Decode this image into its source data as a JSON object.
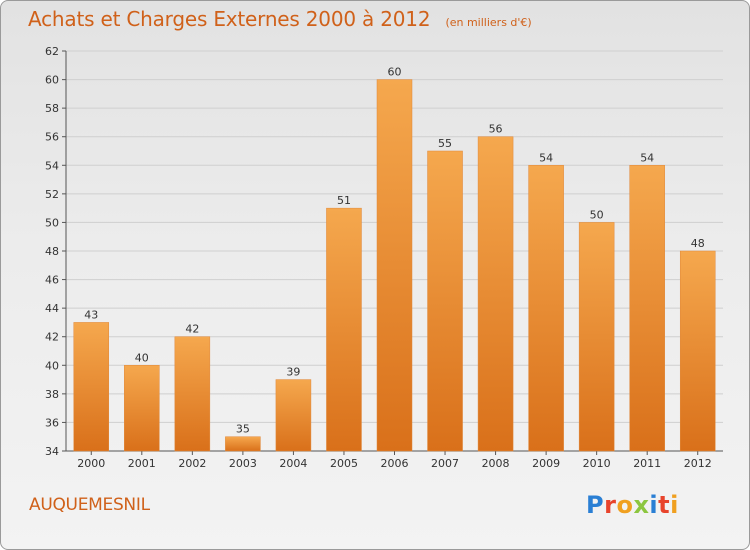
{
  "title": "Achats et Charges Externes 2000 à 2012",
  "unit": "(en milliers d'€)",
  "town": "AUQUEMESNIL",
  "logo": {
    "letters": [
      "P",
      "r",
      "o",
      "x",
      "i",
      "t",
      "i"
    ],
    "colors": [
      "#2a7fd4",
      "#e8442c",
      "#f0a020",
      "#8cc63f",
      "#2a7fd4",
      "#e8442c",
      "#f0a020"
    ]
  },
  "chart_data": {
    "type": "bar",
    "categories": [
      "2000",
      "2001",
      "2002",
      "2003",
      "2004",
      "2005",
      "2006",
      "2007",
      "2008",
      "2009",
      "2010",
      "2011",
      "2012"
    ],
    "values": [
      43,
      40,
      42,
      35,
      39,
      51,
      60,
      55,
      56,
      54,
      50,
      54,
      48
    ],
    "ylim": [
      34,
      62
    ],
    "yticks": [
      34,
      36,
      38,
      40,
      42,
      44,
      46,
      48,
      50,
      52,
      54,
      56,
      58,
      60,
      62
    ],
    "grid": true,
    "bar_color_top": "#f5a84e",
    "bar_color_bottom": "#d9701a"
  }
}
